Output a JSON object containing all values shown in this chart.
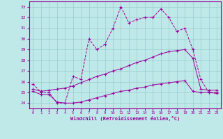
{
  "xlabel": "Windchill (Refroidissement éolien,°C)",
  "xlim": [
    -0.5,
    23.5
  ],
  "ylim": [
    23.5,
    33.5
  ],
  "yticks": [
    24,
    25,
    26,
    27,
    28,
    29,
    30,
    31,
    32,
    33
  ],
  "xticks": [
    0,
    1,
    2,
    3,
    4,
    5,
    6,
    7,
    8,
    9,
    10,
    11,
    12,
    13,
    14,
    15,
    16,
    17,
    18,
    19,
    20,
    21,
    22,
    23
  ],
  "background_color": "#bfe8e8",
  "grid_color": "#99cccc",
  "line_color": "#990099",
  "line1_y": [
    25.8,
    25.0,
    25.0,
    24.0,
    24.0,
    26.5,
    26.2,
    30.0,
    29.0,
    29.5,
    31.0,
    33.0,
    31.5,
    31.8,
    32.0,
    32.0,
    32.8,
    32.0,
    30.7,
    31.0,
    29.0,
    26.2,
    25.0,
    25.0
  ],
  "line2_y": [
    25.3,
    25.1,
    25.2,
    25.3,
    25.4,
    25.6,
    25.9,
    26.2,
    26.5,
    26.7,
    27.0,
    27.2,
    27.5,
    27.8,
    28.0,
    28.3,
    28.6,
    28.8,
    28.9,
    29.0,
    28.2,
    25.3,
    25.2,
    25.2
  ],
  "line3_y": [
    25.1,
    24.8,
    24.8,
    24.1,
    24.0,
    24.0,
    24.1,
    24.3,
    24.5,
    24.7,
    24.9,
    25.1,
    25.2,
    25.4,
    25.5,
    25.7,
    25.8,
    25.9,
    26.0,
    26.1,
    25.1,
    25.0,
    25.0,
    24.9
  ]
}
